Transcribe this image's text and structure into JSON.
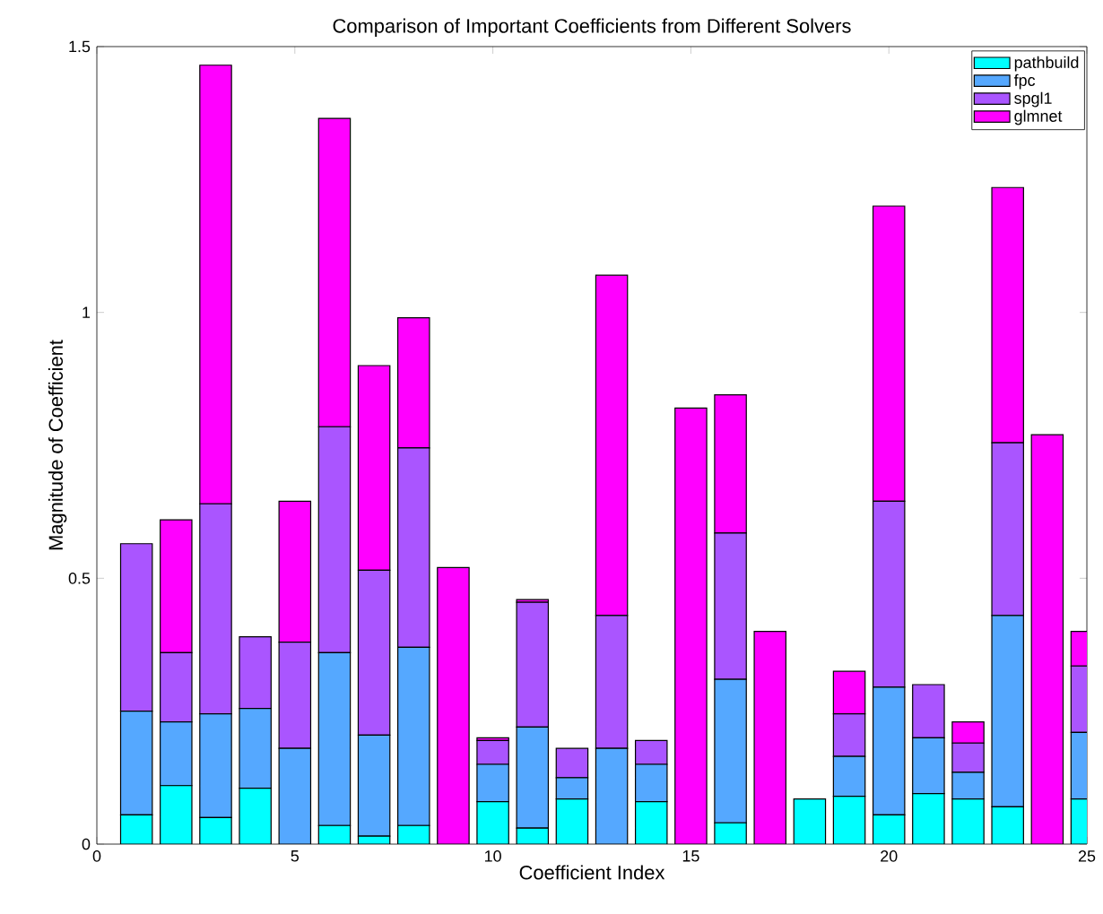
{
  "chart_data": {
    "type": "bar",
    "stacked": true,
    "title": "Comparison of Important Coefficients from Different Solvers",
    "xlabel": "Coefficient Index",
    "ylabel": "Magnitude of Coefficient",
    "x": [
      1,
      2,
      3,
      4,
      5,
      6,
      7,
      8,
      9,
      10,
      11,
      12,
      13,
      14,
      15,
      16,
      17,
      18,
      19,
      20,
      21,
      22,
      23,
      24,
      25
    ],
    "series": [
      {
        "name": "pathbuild",
        "color": "#00ffff",
        "values": [
          0.055,
          0.11,
          0.05,
          0.105,
          0,
          0.035,
          0.015,
          0.035,
          0,
          0.08,
          0.03,
          0.085,
          0,
          0.08,
          0,
          0.04,
          0,
          0.085,
          0.09,
          0.055,
          0.095,
          0.085,
          0.07,
          0,
          0.085
        ]
      },
      {
        "name": "fpc",
        "color": "#55a8ff",
        "values": [
          0.195,
          0.12,
          0.195,
          0.15,
          0.18,
          0.325,
          0.19,
          0.335,
          0,
          0.07,
          0.19,
          0.04,
          0.18,
          0.07,
          0,
          0.27,
          0,
          0,
          0.075,
          0.24,
          0.105,
          0.05,
          0.36,
          0,
          0.125
        ]
      },
      {
        "name": "spgl1",
        "color": "#aa55ff",
        "values": [
          0.315,
          0.13,
          0.395,
          0.135,
          0.2,
          0.425,
          0.31,
          0.375,
          0,
          0.045,
          0.235,
          0.055,
          0.25,
          0.045,
          0,
          0.275,
          0,
          0,
          0.08,
          0.35,
          0.1,
          0.055,
          0.325,
          0,
          0.125
        ]
      },
      {
        "name": "glmnet",
        "color": "#ff00ff",
        "values": [
          0,
          0.25,
          0.825,
          0,
          0.265,
          0.58,
          0.385,
          0.245,
          0.52,
          0.005,
          0.005,
          0,
          0.64,
          0,
          0.82,
          0.26,
          0.4,
          0,
          0.08,
          0.555,
          0,
          0.04,
          0.48,
          0.77,
          0.065
        ]
      }
    ],
    "xlim": [
      0,
      25
    ],
    "xticks": [
      0,
      5,
      10,
      15,
      20,
      25
    ],
    "ylim": [
      0,
      1.5
    ],
    "yticks": [
      0,
      0.5,
      1,
      1.5
    ],
    "legend": "top right",
    "grid": false
  }
}
